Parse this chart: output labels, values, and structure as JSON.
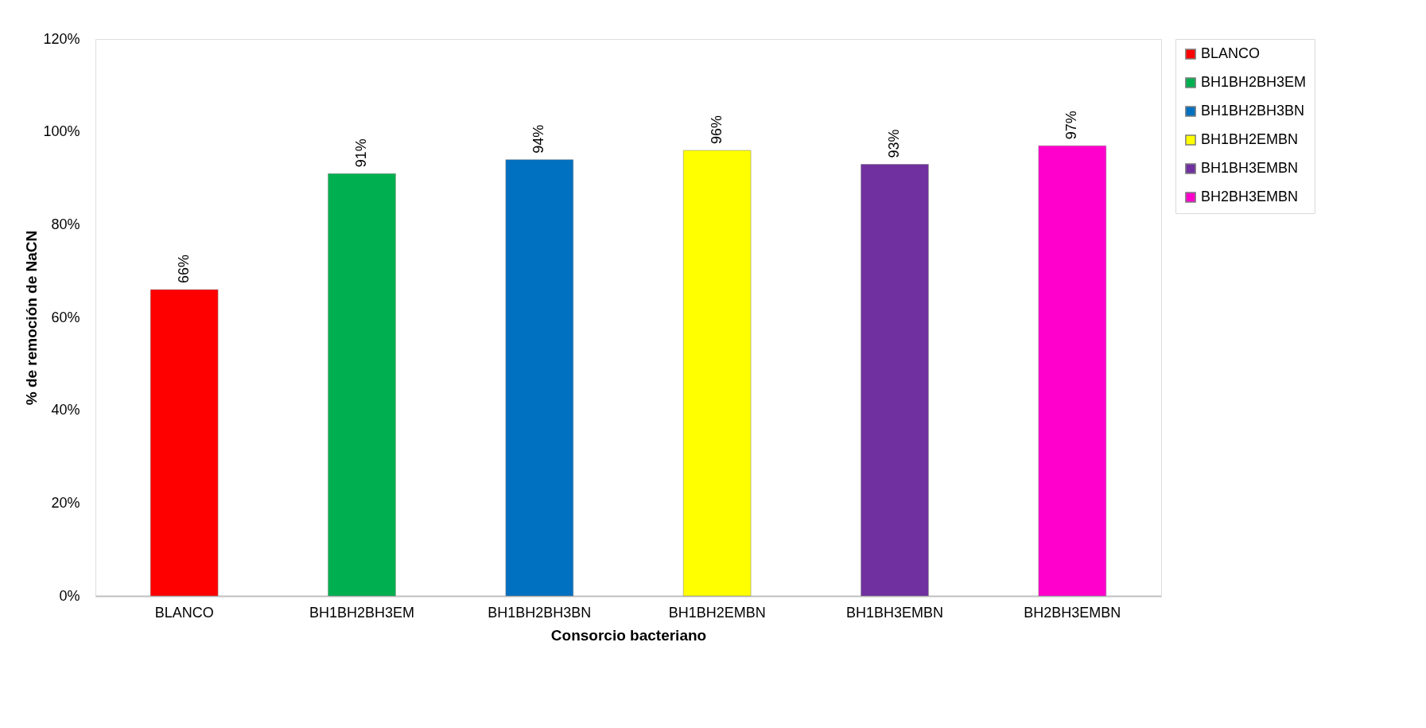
{
  "chart_data": {
    "type": "bar",
    "xlabel": "Consorcio bacteriano",
    "ylabel": "% de remoción de NaCN",
    "categories": [
      "BLANCO",
      "BH1BH2BH3EM",
      "BH1BH2BH3BN",
      "BH1BH2EMBN",
      "BH1BH3EMBN",
      "BH2BH3EMBN"
    ],
    "series": [
      {
        "name": "BLANCO",
        "color": "#ff0000",
        "values": [
          66,
          null,
          null,
          null,
          null,
          null
        ],
        "value_labels": [
          "66%",
          null,
          null,
          null,
          null,
          null
        ]
      },
      {
        "name": "BH1BH2BH3EM",
        "color": "#00b050",
        "values": [
          null,
          91,
          null,
          null,
          null,
          null
        ],
        "value_labels": [
          null,
          "91%",
          null,
          null,
          null,
          null
        ]
      },
      {
        "name": "BH1BH2BH3BN",
        "color": "#0070c0",
        "values": [
          null,
          null,
          94,
          null,
          null,
          null
        ],
        "value_labels": [
          null,
          null,
          "94%",
          null,
          null,
          null
        ]
      },
      {
        "name": "BH1BH2EMBN",
        "color": "#ffff00",
        "values": [
          null,
          null,
          null,
          96,
          null,
          null
        ],
        "value_labels": [
          null,
          null,
          null,
          "96%",
          null,
          null
        ]
      },
      {
        "name": "BH1BH3EMBN",
        "color": "#7030a0",
        "values": [
          null,
          null,
          null,
          null,
          93,
          null
        ],
        "value_labels": [
          null,
          null,
          null,
          null,
          "93%",
          null
        ]
      },
      {
        "name": "BH2BH3EMBN",
        "color": "#ff00cc",
        "values": [
          null,
          null,
          null,
          null,
          null,
          97
        ],
        "value_labels": [
          null,
          null,
          null,
          null,
          null,
          "97%"
        ]
      }
    ],
    "ylim": [
      0,
      120
    ],
    "yticks": [
      {
        "value": 0,
        "label": "0%"
      },
      {
        "value": 20,
        "label": "20%"
      },
      {
        "value": 40,
        "label": "40%"
      },
      {
        "value": 60,
        "label": "60%"
      },
      {
        "value": 80,
        "label": "80%"
      },
      {
        "value": 100,
        "label": "100%"
      },
      {
        "value": 120,
        "label": "120%"
      }
    ],
    "grid": false,
    "legend": "right"
  }
}
